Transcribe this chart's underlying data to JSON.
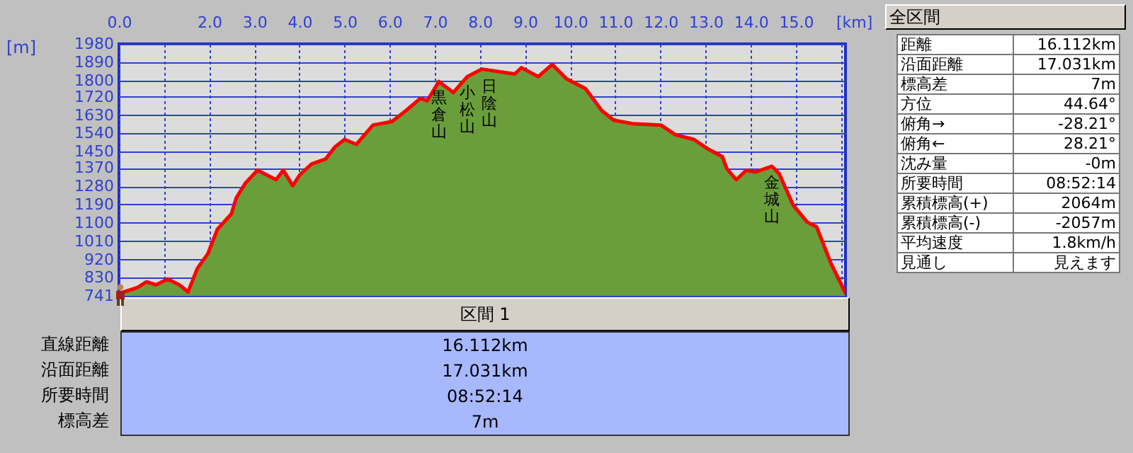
{
  "chart_data": [
    {
      "type": "area",
      "xlabel": "[km]",
      "ylabel": "[m]",
      "x": [
        0,
        0.4,
        0.61,
        0.82,
        1.08,
        1.34,
        1.53,
        1.74,
        1.97,
        2.18,
        2.49,
        2.6,
        2.8,
        3.07,
        3.48,
        3.64,
        3.85,
        4.01,
        4.27,
        4.58,
        4.79,
        5.0,
        5.26,
        5.63,
        6.05,
        6.36,
        6.68,
        6.83,
        7.09,
        7.41,
        7.72,
        8.04,
        8.77,
        8.92,
        9.29,
        9.6,
        9.92,
        10.34,
        10.7,
        10.96,
        11.38,
        12.01,
        12.33,
        12.74,
        13.06,
        13.37,
        13.47,
        13.68,
        13.9,
        14.1,
        14.47,
        14.63,
        14.94,
        15.25,
        15.46,
        15.78,
        15.99,
        16.09
      ],
      "series": [
        {
          "type": "area",
          "color": "#6a9e3a",
          "values": [
            753,
            781,
            810,
            795,
            824,
            795,
            760,
            877,
            948,
            1068,
            1144,
            1223,
            1295,
            1359,
            1312,
            1359,
            1283,
            1337,
            1390,
            1414,
            1474,
            1510,
            1486,
            1581,
            1598,
            1652,
            1712,
            1700,
            1795,
            1741,
            1819,
            1856,
            1832,
            1863,
            1819,
            1879,
            1808,
            1760,
            1652,
            1605,
            1588,
            1581,
            1533,
            1510,
            1462,
            1426,
            1366,
            1312,
            1359,
            1350,
            1378,
            1342,
            1187,
            1104,
            1080,
            900,
            805,
            757
          ]
        },
        {
          "type": "line",
          "color": "#ff0000",
          "values": [
            753,
            781,
            810,
            795,
            824,
            795,
            760,
            877,
            948,
            1068,
            1144,
            1223,
            1295,
            1359,
            1312,
            1359,
            1283,
            1337,
            1390,
            1414,
            1474,
            1510,
            1486,
            1581,
            1598,
            1652,
            1712,
            1700,
            1795,
            1741,
            1819,
            1856,
            1832,
            1863,
            1819,
            1879,
            1808,
            1760,
            1652,
            1605,
            1588,
            1581,
            1533,
            1510,
            1462,
            1426,
            1366,
            1312,
            1359,
            1350,
            1378,
            1342,
            1187,
            1104,
            1080,
            900,
            805,
            757
          ]
        }
      ],
      "xlim": [
        0,
        16.1
      ],
      "xticks": [
        {
          "value": 0,
          "label": "0.0"
        },
        {
          "value": 1,
          "label": null
        },
        {
          "value": 2,
          "label": "2.0"
        },
        {
          "value": 3,
          "label": "3.0"
        },
        {
          "value": 4,
          "label": "4.0"
        },
        {
          "value": 5,
          "label": "5.0"
        },
        {
          "value": 6,
          "label": "6.0"
        },
        {
          "value": 7,
          "label": "7.0"
        },
        {
          "value": 8,
          "label": "8.0"
        },
        {
          "value": 9,
          "label": "9.0"
        },
        {
          "value": 10,
          "label": "10.0"
        },
        {
          "value": 11,
          "label": "11.0"
        },
        {
          "value": 12,
          "label": "12.0"
        },
        {
          "value": 13,
          "label": "13.0"
        },
        {
          "value": 14,
          "label": "14.0"
        },
        {
          "value": 15,
          "label": "15.0"
        },
        {
          "value": 16,
          "label": null
        }
      ],
      "ylim": [
        741,
        1980
      ],
      "yticks": [
        741,
        830,
        920,
        1010,
        1100,
        1190,
        1280,
        1370,
        1450,
        1540,
        1630,
        1720,
        1800,
        1890,
        1980
      ],
      "grid": true,
      "annotations": [
        {
          "text": "黒倉山",
          "x": 7.09,
          "y": 1795
        },
        {
          "text": "小松山",
          "x": 7.72,
          "y": 1819
        },
        {
          "text": "日陰山",
          "x": 8.2,
          "y": 1850
        },
        {
          "text": "金城山",
          "x": 14.47,
          "y": 1378
        }
      ]
    },
    {
      "type": "other",
      "title": "全区間",
      "annotations": [
        "距離",
        "16.112km",
        "沿面距離",
        "17.031km",
        "標高差",
        "7m",
        "方位",
        "44.64°",
        "俯角→",
        "-28.21°",
        "俯角←",
        "28.21°",
        "沈み量",
        "-0m",
        "所要時間",
        "08:52:14",
        "累積標高(+)",
        "2064m",
        "累積標高(-)",
        "-2057m",
        "平均速度",
        "1.8km/h",
        "見通し",
        "見えます"
      ]
    },
    {
      "type": "other",
      "title": "区間 1",
      "annotations": [
        "直線距離",
        "16.112km",
        "沿面距離",
        "17.031km",
        "所要時間",
        "08:52:14",
        "標高差",
        "7m"
      ]
    }
  ]
}
